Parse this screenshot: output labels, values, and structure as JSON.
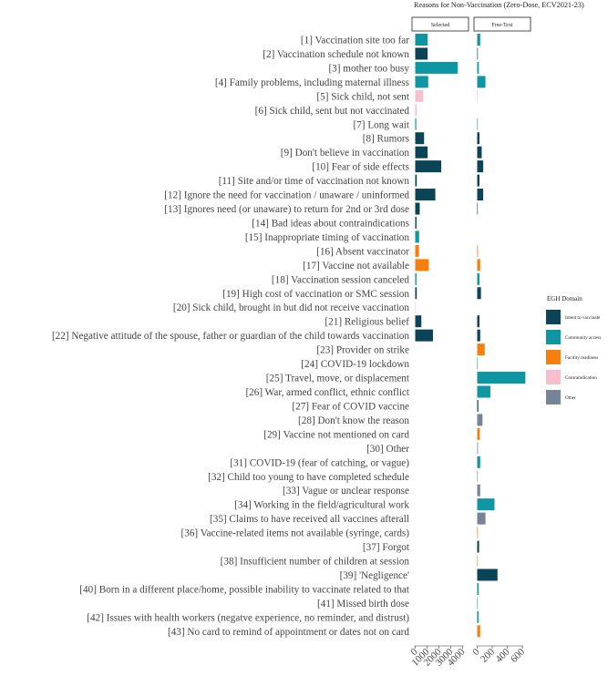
{
  "chart_data": {
    "type": "bar",
    "orientation": "horizontal",
    "title": "Reasons for Non-Vaccination (Zero-Dose, ECV2021-23)",
    "panels": [
      {
        "name": "Selected",
        "ticks": [
          0,
          1000,
          2000,
          3000,
          4000
        ],
        "xlim": [
          0,
          4700
        ]
      },
      {
        "name": "Free-Text",
        "ticks": [
          0,
          200,
          400,
          600
        ],
        "xlim": [
          0,
          700
        ]
      }
    ],
    "legend": {
      "title": "EGH Domain",
      "position": "right",
      "items": [
        {
          "name": "Intent to vaccinate",
          "color": "#0b4456"
        },
        {
          "name": "Community access",
          "color": "#0e96a2"
        },
        {
          "name": "Facility readiness",
          "color": "#f77f0e"
        },
        {
          "name": "Contraindication",
          "color": "#f7bfcb"
        },
        {
          "name": "Other",
          "color": "#778496"
        }
      ]
    },
    "categories": [
      {
        "label": "[1] Vaccination site too far",
        "domain": "Community access",
        "selected": 1050,
        "free_text": 40
      },
      {
        "label": "[2] Vaccination schedule not known",
        "domain": "Intent to vaccinate",
        "selected": 1050,
        "free_text": 8
      },
      {
        "label": "[3] mother too busy",
        "domain": "Community access",
        "selected": 3600,
        "free_text": 22
      },
      {
        "label": "[4] Family problems, including maternal illness",
        "domain": "Community access",
        "selected": 1100,
        "free_text": 110
      },
      {
        "label": "[5] Sick child, not sent",
        "domain": "Contraindication",
        "selected": 680,
        "free_text": 4
      },
      {
        "label": "[6] Sick child, sent but not vaccinated",
        "domain": "Contraindication",
        "selected": 130,
        "free_text": 0
      },
      {
        "label": "[7] Long wait",
        "domain": "Community access",
        "selected": 90,
        "free_text": 3
      },
      {
        "label": "[8] Rumors",
        "domain": "Intent to vaccinate",
        "selected": 750,
        "free_text": 30
      },
      {
        "label": "[9] Don't believe in vaccination",
        "domain": "Intent to vaccinate",
        "selected": 1050,
        "free_text": 60
      },
      {
        "label": "[10] Fear of side effects",
        "domain": "Intent to vaccinate",
        "selected": 2200,
        "free_text": 80
      },
      {
        "label": "[11] Site and/or time of vaccination not known",
        "domain": "Intent to vaccinate",
        "selected": 130,
        "free_text": 30
      },
      {
        "label": "[12] Ignore the need for vaccination  / unaware / uninformed",
        "domain": "Intent to vaccinate",
        "selected": 1700,
        "free_text": 80
      },
      {
        "label": "[13] Ignores need (or unaware) to return for 2nd or 3rd dose",
        "domain": "Intent to vaccinate",
        "selected": 380,
        "free_text": 3
      },
      {
        "label": "[14] Bad ideas about contraindications",
        "domain": "Intent to vaccinate",
        "selected": 110,
        "free_text": 0
      },
      {
        "label": "[15] Inappropriate timing of vaccination",
        "domain": "Community access",
        "selected": 330,
        "free_text": 0
      },
      {
        "label": "[16] Absent vaccinator",
        "domain": "Facility readiness",
        "selected": 320,
        "free_text": 10
      },
      {
        "label": "[17] Vaccine not available",
        "domain": "Facility readiness",
        "selected": 1150,
        "free_text": 40
      },
      {
        "label": "[18] Vaccination session canceled",
        "domain": "Community access",
        "selected": 110,
        "free_text": 30
      },
      {
        "label": "[19] High cost of vaccination or SMC session",
        "domain": "Intent to vaccinate",
        "selected": 130,
        "free_text": 50
      },
      {
        "label": "[20] Sick child, brought in but did not receive vaccination",
        "domain": "Contraindication",
        "selected": 25,
        "free_text": 0
      },
      {
        "label": "[21] Religious belief",
        "domain": "Intent to vaccinate",
        "selected": 520,
        "free_text": 30
      },
      {
        "label": "[22] Negative attitude of the spouse, father or guardian of the child towards vaccination",
        "domain": "Intent to vaccinate",
        "selected": 1500,
        "free_text": 40
      },
      {
        "label": "[23] Provider on strike",
        "domain": "Facility readiness",
        "selected": 0,
        "free_text": 100
      },
      {
        "label": "[24] COVID-19 lockdown",
        "domain": "Community access",
        "selected": 0,
        "free_text": 5
      },
      {
        "label": "[25] Travel, move, or displacement",
        "domain": "Community access",
        "selected": 0,
        "free_text": 640
      },
      {
        "label": "[26] War, armed conflict, ethnic conflict",
        "domain": "Community access",
        "selected": 0,
        "free_text": 175
      },
      {
        "label": "[27] Fear of COVID vaccine",
        "domain": "Intent to vaccinate",
        "selected": 0,
        "free_text": 15
      },
      {
        "label": "[28] Don't know the reason",
        "domain": "Other",
        "selected": 0,
        "free_text": 70
      },
      {
        "label": "[29] Vaccine not mentioned on card",
        "domain": "Facility readiness",
        "selected": 0,
        "free_text": 35
      },
      {
        "label": "[30] Other",
        "domain": "Other",
        "selected": 0,
        "free_text": 10
      },
      {
        "label": "[31] COVID-19 (fear of catching, or vague)",
        "domain": "Community access",
        "selected": 0,
        "free_text": 40
      },
      {
        "label": "[32] Child too young to have completed schedule",
        "domain": "Other",
        "selected": 0,
        "free_text": 3
      },
      {
        "label": "[33] Vague or unclear response",
        "domain": "Other",
        "selected": 0,
        "free_text": 40
      },
      {
        "label": "[34] Working in the field/agricultural work",
        "domain": "Community access",
        "selected": 0,
        "free_text": 230
      },
      {
        "label": "[35] Claims to have received all vaccines afterall",
        "domain": "Other",
        "selected": 0,
        "free_text": 110
      },
      {
        "label": "[36] Vaccine-related items not available (syringe, cards)",
        "domain": "Facility readiness",
        "selected": 0,
        "free_text": 8
      },
      {
        "label": "[37] Forgot",
        "domain": "Intent to vaccinate",
        "selected": 0,
        "free_text": 25
      },
      {
        "label": "[38] Insufficient number of children at session",
        "domain": "Facility readiness",
        "selected": 0,
        "free_text": 3
      },
      {
        "label": "[39] 'Negligence'",
        "domain": "Intent to vaccinate",
        "selected": 0,
        "free_text": 270
      },
      {
        "label": "[40] Born in a different place/home, possible inability to vaccinate related to that",
        "domain": "Community access",
        "selected": 0,
        "free_text": 20
      },
      {
        "label": "[41] Missed birth dose",
        "domain": "Community access",
        "selected": 0,
        "free_text": 3
      },
      {
        "label": "[42] Issues with health workers (negatve experience, no reminder, and distrust)",
        "domain": "Community access",
        "selected": 0,
        "free_text": 20
      },
      {
        "label": "[43] No card to remind of appointment or dates not on card",
        "domain": "Facility readiness",
        "selected": 0,
        "free_text": 40
      }
    ]
  }
}
